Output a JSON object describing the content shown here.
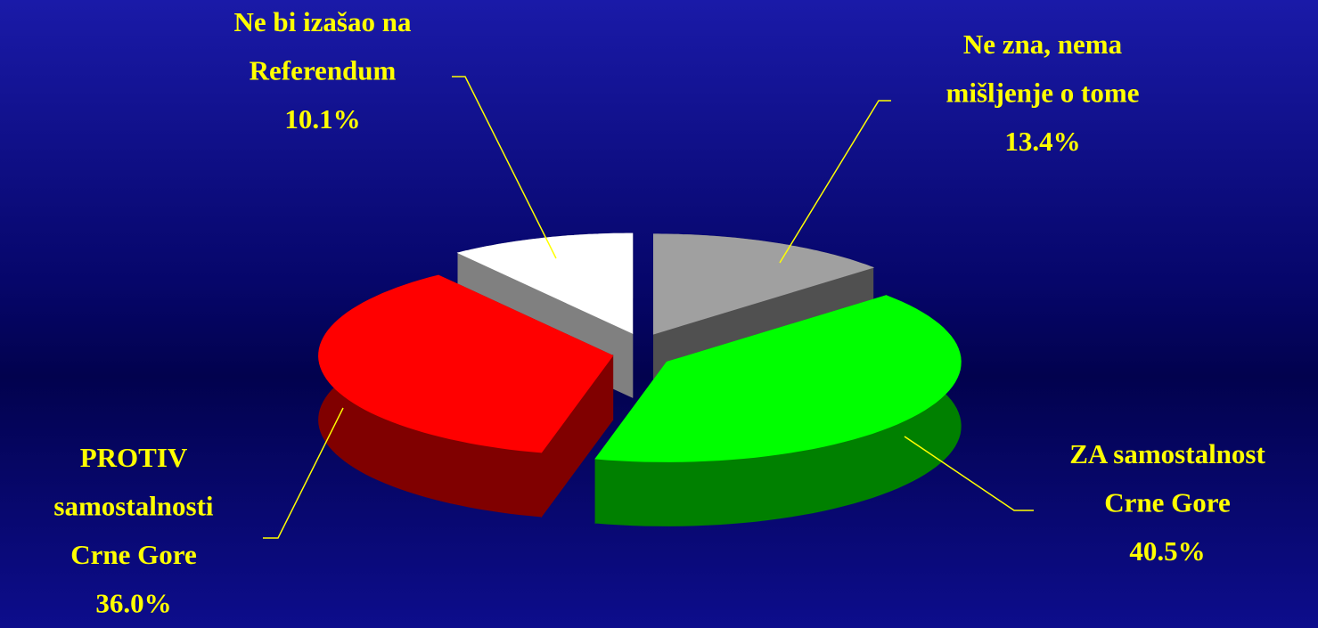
{
  "chart_data": {
    "type": "pie",
    "categories": [
      "Ne zna, nema\nmišljenje o tome",
      "ZA samostalnost\nCrne Gore",
      "PROTIV\nsamostalnosti\nCrne Gore",
      "Ne bi izašao na\nReferendum"
    ],
    "values": [
      13.4,
      40.5,
      36.0,
      10.1
    ],
    "value_labels": [
      "13.4%",
      "40.5%",
      "36.0%",
      "10.1%"
    ],
    "colors": [
      "#a0a0a0",
      "#00ff00",
      "#ff0000",
      "#ffffff"
    ]
  }
}
